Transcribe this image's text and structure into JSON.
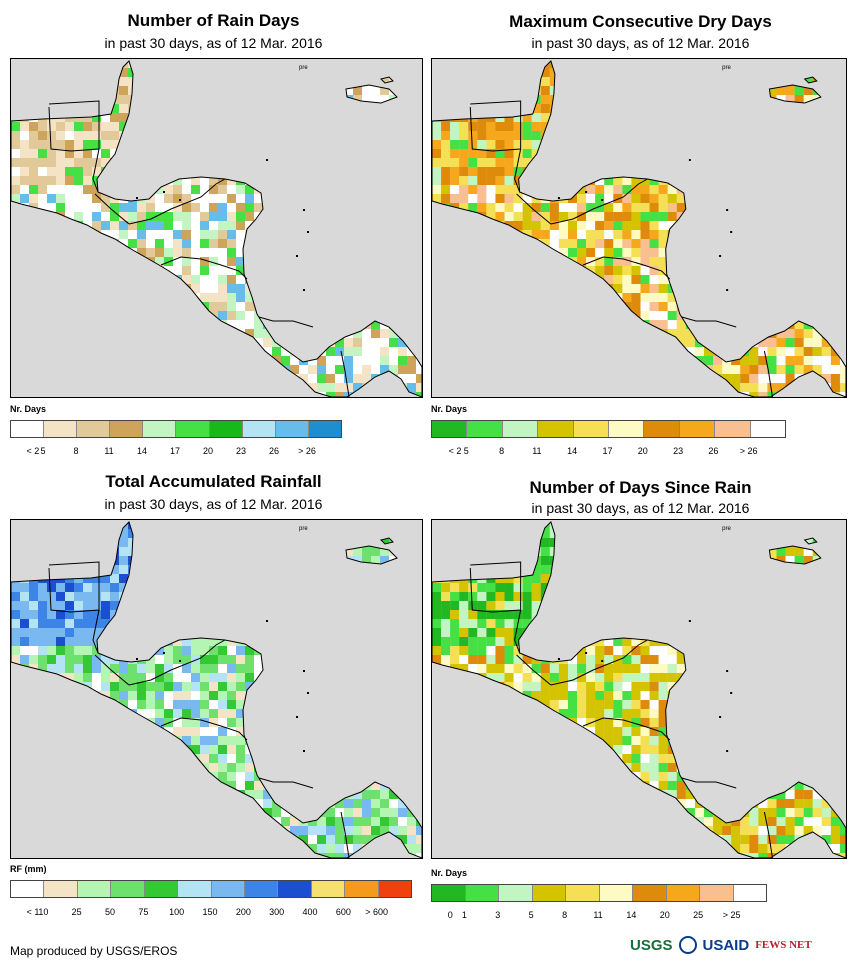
{
  "panels": [
    {
      "title": "Number of Rain Days",
      "subtitle": "in past 30 days, as of 12 Mar. 2016",
      "place_label": "pre",
      "legend": {
        "unit": "Nr. Days",
        "colors": [
          "#ffffff",
          "#f5e3c5",
          "#e2c99a",
          "#cda45a",
          "#c3f5c3",
          "#44e044",
          "#18b818",
          "#b4e4f4",
          "#66bde9",
          "#1e8ed0"
        ],
        "labels": [
          "< 2",
          "5",
          "8",
          "11",
          "14",
          "17",
          "20",
          "23",
          "26",
          "> 26"
        ]
      },
      "land_palette": [
        "#ffffff",
        "#ffffff",
        "#ffffff",
        "#f5e3c5",
        "#e2c99a",
        "#cda45a",
        "#c3f5c3",
        "#44e044",
        "#66bde9"
      ],
      "north_palette": [
        "#e2c99a",
        "#f5e3c5",
        "#e2c99a",
        "#cda45a",
        "#f5e3c5",
        "#ffffff",
        "#44e044"
      ]
    },
    {
      "title": "Maximum Consecutive Dry Days",
      "subtitle": "in past 30 days, as of 12 Mar. 2016",
      "place_label": "pre",
      "legend": {
        "unit": "Nr. Days",
        "colors": [
          "#22b822",
          "#44e044",
          "#c3f5c3",
          "#d4c400",
          "#f5e055",
          "#fdfbc3",
          "#de8a0a",
          "#f5a81b",
          "#f8c090",
          "#ffffff"
        ],
        "labels": [
          "< 2",
          "5",
          "8",
          "11",
          "14",
          "17",
          "20",
          "23",
          "26",
          "> 26"
        ]
      },
      "land_palette": [
        "#fdfbc3",
        "#f5e055",
        "#f5e055",
        "#f5a81b",
        "#de8a0a",
        "#ffffff",
        "#f8c090",
        "#d4c400",
        "#44e044"
      ],
      "north_palette": [
        "#de8a0a",
        "#f5a81b",
        "#de8a0a",
        "#f5e055",
        "#c3f5c3",
        "#44e044",
        "#f5a81b"
      ]
    },
    {
      "title": "Total Accumulated Rainfall",
      "subtitle": "in past 30 days, as of 12 Mar. 2016",
      "place_label": "pre",
      "legend": {
        "unit": "RF (mm)",
        "colors": [
          "#ffffff",
          "#f5e3c5",
          "#b4f5b4",
          "#6ee06e",
          "#34c834",
          "#b4e4f4",
          "#7ab8f0",
          "#3c84e6",
          "#1a4fd0",
          "#f5e070",
          "#f59b1b",
          "#f04010"
        ],
        "labels": [
          "< 1",
          "10",
          "25",
          "50",
          "75",
          "100",
          "150",
          "200",
          "300",
          "400",
          "600",
          "> 600"
        ]
      },
      "land_palette": [
        "#b4f5b4",
        "#6ee06e",
        "#34c834",
        "#ffffff",
        "#f5e3c5",
        "#b4f5b4",
        "#6ee06e",
        "#b4e4f4",
        "#7ab8f0"
      ],
      "north_palette": [
        "#7ab8f0",
        "#3c84e6",
        "#7ab8f0",
        "#1a4fd0",
        "#b4e4f4",
        "#3c84e6",
        "#7ab8f0"
      ]
    },
    {
      "title": "Number of Days Since Rain",
      "subtitle": "in past 30 days, as of 12 Mar. 2016",
      "place_label": "pre",
      "legend": {
        "unit": "Nr. Days",
        "colors": [
          "#22b822",
          "#44e044",
          "#c3f5c3",
          "#d4c400",
          "#f5e055",
          "#fdfbc3",
          "#de8a0a",
          "#f5a81b",
          "#f8c090",
          "#ffffff"
        ],
        "labels": [
          "0",
          "1",
          "3",
          "5",
          "8",
          "11",
          "14",
          "20",
          "25",
          "> 25"
        ]
      },
      "land_palette": [
        "#d4c400",
        "#d4c400",
        "#f5e055",
        "#fdfbc3",
        "#d4c400",
        "#ffffff",
        "#c3f5c3",
        "#44e044",
        "#de8a0a"
      ],
      "north_palette": [
        "#22b822",
        "#44e044",
        "#22b822",
        "#d4c400",
        "#c3f5c3",
        "#44e044",
        "#f5e055"
      ]
    }
  ],
  "credit": "Map produced by USGS/EROS",
  "logos": {
    "usgs": "USGS",
    "usaid": "USAID",
    "fews": "FEWS NET"
  }
}
